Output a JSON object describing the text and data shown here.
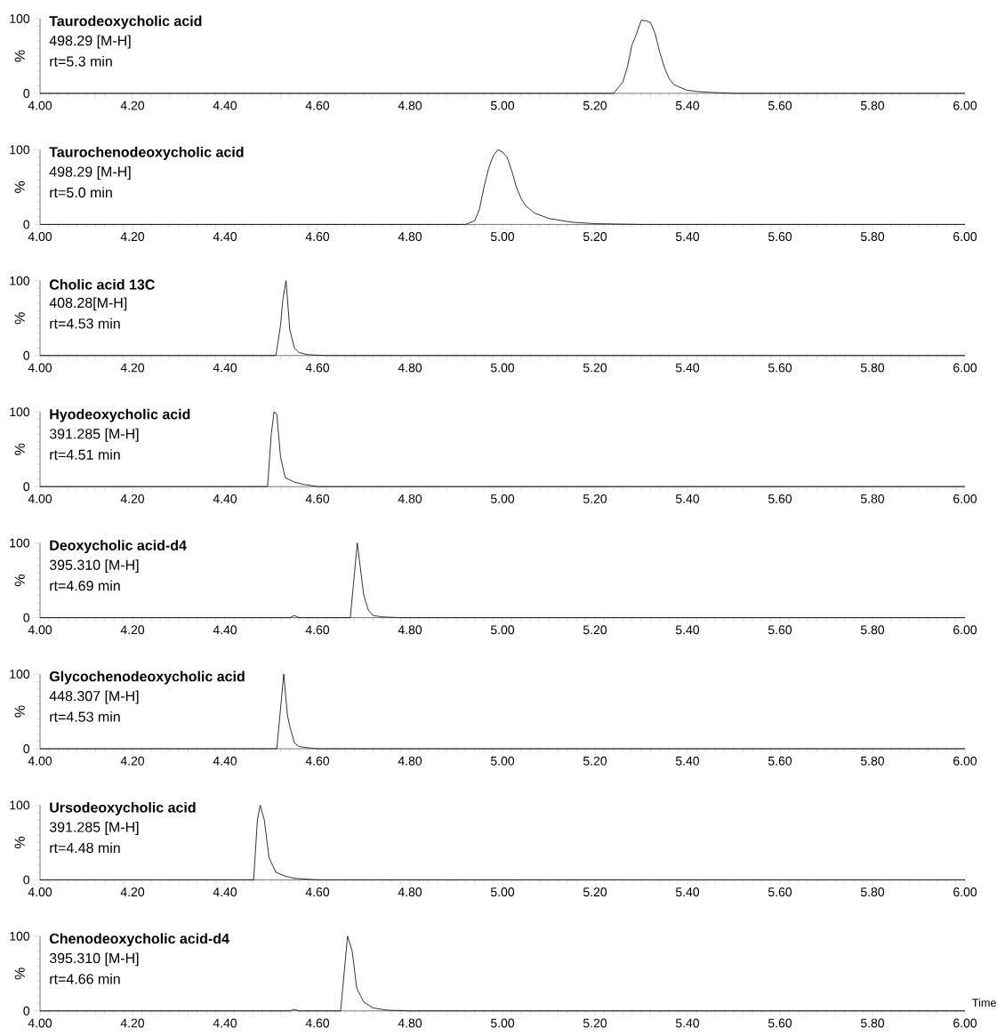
{
  "chart_data": [
    {
      "type": "line",
      "title": "Taurodeoxycholic acid",
      "annotations": [
        "498.29 [M-H]",
        "rt=5.3 min"
      ],
      "ylabel": "%",
      "xlim": [
        4.0,
        6.0
      ],
      "ylim": [
        0,
        100
      ],
      "yticks": [
        0,
        100
      ],
      "xticks": [
        {
          "value": 4.0,
          "label": "4.00"
        },
        {
          "value": 4.2,
          "label": "4.20"
        },
        {
          "value": 4.4,
          "label": "4.40"
        },
        {
          "value": 4.6,
          "label": "4.60"
        },
        {
          "value": 4.8,
          "label": "4.80"
        },
        {
          "value": 5.0,
          "label": "5.00"
        },
        {
          "value": 5.2,
          "label": "5.20"
        },
        {
          "value": 5.4,
          "label": "5.40"
        },
        {
          "value": 5.6,
          "label": "5.60"
        },
        {
          "value": 5.8,
          "label": "5.80"
        },
        {
          "value": 6.0,
          "label": "6.00"
        }
      ],
      "series": [
        {
          "color": "#000000",
          "x": [
            4.0,
            5.24,
            5.26,
            5.27,
            5.28,
            5.29,
            5.3,
            5.31,
            5.32,
            5.33,
            5.34,
            5.35,
            5.36,
            5.37,
            5.38,
            5.4,
            5.43,
            5.46,
            5.5,
            6.0
          ],
          "values": [
            0,
            0,
            15,
            35,
            65,
            80,
            98,
            97,
            95,
            80,
            55,
            35,
            20,
            12,
            9,
            4,
            2,
            1,
            0,
            0
          ]
        }
      ]
    },
    {
      "type": "line",
      "title": "Taurochenodeoxycholic acid",
      "annotations": [
        "498.29 [M-H]",
        "rt=5.0 min"
      ],
      "ylabel": "%",
      "xlim": [
        4.0,
        6.0
      ],
      "ylim": [
        0,
        100
      ],
      "yticks": [
        0,
        100
      ],
      "xticks": [
        {
          "value": 4.0,
          "label": "4.00"
        },
        {
          "value": 4.2,
          "label": "4.20"
        },
        {
          "value": 4.4,
          "label": "4.40"
        },
        {
          "value": 4.6,
          "label": "4.60"
        },
        {
          "value": 4.8,
          "label": "4.80"
        },
        {
          "value": 5.0,
          "label": "5.00"
        },
        {
          "value": 5.2,
          "label": "5.20"
        },
        {
          "value": 5.4,
          "label": "5.40"
        },
        {
          "value": 5.6,
          "label": "5.60"
        },
        {
          "value": 5.8,
          "label": "5.80"
        },
        {
          "value": 6.0,
          "label": "6.00"
        }
      ],
      "series": [
        {
          "color": "#000000",
          "x": [
            4.0,
            4.92,
            4.94,
            4.95,
            4.96,
            4.97,
            4.98,
            4.99,
            5.0,
            5.01,
            5.02,
            5.03,
            5.04,
            5.05,
            5.07,
            5.1,
            5.15,
            5.2,
            5.3,
            6.0
          ],
          "values": [
            0,
            0,
            5,
            20,
            50,
            75,
            92,
            100,
            97,
            90,
            72,
            50,
            35,
            25,
            15,
            8,
            3,
            1,
            0,
            0
          ]
        }
      ]
    },
    {
      "type": "line",
      "title": "Cholic acid 13C",
      "annotations": [
        "408.28[M-H]",
        "rt=4.53 min"
      ],
      "ylabel": "%",
      "xlim": [
        4.0,
        6.0
      ],
      "ylim": [
        0,
        100
      ],
      "yticks": [
        0,
        100
      ],
      "xticks": [
        {
          "value": 4.0,
          "label": "4.00"
        },
        {
          "value": 4.2,
          "label": "4.20"
        },
        {
          "value": 4.4,
          "label": "4.40"
        },
        {
          "value": 4.6,
          "label": "4.60"
        },
        {
          "value": 4.8,
          "label": "4.80"
        },
        {
          "value": 5.0,
          "label": "5.00"
        },
        {
          "value": 5.2,
          "label": "5.20"
        },
        {
          "value": 5.4,
          "label": "5.40"
        },
        {
          "value": 5.6,
          "label": "5.60"
        },
        {
          "value": 5.8,
          "label": "5.80"
        },
        {
          "value": 6.0,
          "label": "6.00"
        }
      ],
      "series": [
        {
          "color": "#000000",
          "x": [
            4.0,
            4.51,
            4.52,
            4.525,
            4.532,
            4.54,
            4.55,
            4.56,
            4.58,
            4.62,
            6.0
          ],
          "values": [
            0,
            0,
            40,
            75,
            100,
            35,
            10,
            4,
            1,
            0,
            0
          ]
        }
      ]
    },
    {
      "type": "line",
      "title": "Hyodeoxycholic acid",
      "annotations": [
        "391.285 [M-H]",
        "rt=4.51 min"
      ],
      "ylabel": "%",
      "xlim": [
        4.0,
        6.0
      ],
      "ylim": [
        0,
        100
      ],
      "yticks": [
        0,
        100
      ],
      "xticks": [
        {
          "value": 4.0,
          "label": "4.00"
        },
        {
          "value": 4.2,
          "label": "4.20"
        },
        {
          "value": 4.4,
          "label": "4.40"
        },
        {
          "value": 4.6,
          "label": "4.60"
        },
        {
          "value": 4.8,
          "label": "4.80"
        },
        {
          "value": 5.0,
          "label": "5.00"
        },
        {
          "value": 5.2,
          "label": "5.20"
        },
        {
          "value": 5.4,
          "label": "5.40"
        },
        {
          "value": 5.6,
          "label": "5.60"
        },
        {
          "value": 5.8,
          "label": "5.80"
        },
        {
          "value": 6.0,
          "label": "6.00"
        }
      ],
      "series": [
        {
          "color": "#000000",
          "x": [
            4.0,
            4.492,
            4.5,
            4.506,
            4.512,
            4.52,
            4.53,
            4.55,
            4.57,
            4.6,
            6.0
          ],
          "values": [
            0,
            0,
            70,
            100,
            97,
            40,
            12,
            6,
            3,
            0,
            0
          ]
        }
      ]
    },
    {
      "type": "line",
      "title": "Deoxycholic acid-d4",
      "annotations": [
        "395.310 [M-H]",
        "rt=4.69 min"
      ],
      "ylabel": "%",
      "xlim": [
        4.0,
        6.0
      ],
      "ylim": [
        0,
        100
      ],
      "yticks": [
        0,
        100
      ],
      "xticks": [
        {
          "value": 4.0,
          "label": "4.00"
        },
        {
          "value": 4.2,
          "label": "4.20"
        },
        {
          "value": 4.4,
          "label": "4.40"
        },
        {
          "value": 4.6,
          "label": "4.60"
        },
        {
          "value": 4.8,
          "label": "4.80"
        },
        {
          "value": 5.0,
          "label": "5.00"
        },
        {
          "value": 5.2,
          "label": "5.20"
        },
        {
          "value": 5.4,
          "label": "5.40"
        },
        {
          "value": 5.6,
          "label": "5.60"
        },
        {
          "value": 5.8,
          "label": "5.80"
        },
        {
          "value": 6.0,
          "label": "6.00"
        }
      ],
      "series": [
        {
          "color": "#000000",
          "x": [
            4.0,
            4.54,
            4.55,
            4.56,
            4.671,
            4.686,
            4.7,
            4.71,
            4.72,
            4.74,
            4.78,
            6.0
          ],
          "values": [
            0,
            0,
            3,
            0,
            0,
            100,
            30,
            10,
            3,
            1,
            0,
            0
          ]
        }
      ]
    },
    {
      "type": "line",
      "title": "Glycochenodeoxycholic acid",
      "annotations": [
        "448.307 [M-H]",
        "rt=4.53 min"
      ],
      "ylabel": "%",
      "xlim": [
        4.0,
        6.0
      ],
      "ylim": [
        0,
        100
      ],
      "yticks": [
        0,
        100
      ],
      "xticks": [
        {
          "value": 4.0,
          "label": "4.00"
        },
        {
          "value": 4.2,
          "label": "4.20"
        },
        {
          "value": 4.4,
          "label": "4.40"
        },
        {
          "value": 4.6,
          "label": "4.60"
        },
        {
          "value": 4.8,
          "label": "4.80"
        },
        {
          "value": 5.0,
          "label": "5.00"
        },
        {
          "value": 5.2,
          "label": "5.20"
        },
        {
          "value": 5.4,
          "label": "5.40"
        },
        {
          "value": 5.6,
          "label": "5.60"
        },
        {
          "value": 5.8,
          "label": "5.80"
        },
        {
          "value": 6.0,
          "label": "6.00"
        }
      ],
      "series": [
        {
          "color": "#000000",
          "x": [
            4.0,
            4.512,
            4.527,
            4.535,
            4.54,
            4.55,
            4.56,
            4.57,
            4.6,
            6.0
          ],
          "values": [
            0,
            0,
            100,
            45,
            30,
            8,
            3,
            2,
            0,
            0
          ]
        }
      ]
    },
    {
      "type": "line",
      "title": "Ursodeoxycholic acid",
      "annotations": [
        "391.285 [M-H]",
        "rt=4.48 min"
      ],
      "ylabel": "%",
      "xlim": [
        4.0,
        6.0
      ],
      "ylim": [
        0,
        100
      ],
      "yticks": [
        0,
        100
      ],
      "xticks": [
        {
          "value": 4.0,
          "label": "4.00"
        },
        {
          "value": 4.2,
          "label": "4.20"
        },
        {
          "value": 4.4,
          "label": "4.40"
        },
        {
          "value": 4.6,
          "label": "4.60"
        },
        {
          "value": 4.8,
          "label": "4.80"
        },
        {
          "value": 5.0,
          "label": "5.00"
        },
        {
          "value": 5.2,
          "label": "5.20"
        },
        {
          "value": 5.4,
          "label": "5.40"
        },
        {
          "value": 5.6,
          "label": "5.60"
        },
        {
          "value": 5.8,
          "label": "5.80"
        },
        {
          "value": 6.0,
          "label": "6.00"
        }
      ],
      "series": [
        {
          "color": "#000000",
          "x": [
            4.0,
            4.462,
            4.47,
            4.476,
            4.485,
            4.495,
            4.51,
            4.53,
            4.55,
            4.6,
            6.0
          ],
          "values": [
            0,
            0,
            80,
            100,
            80,
            30,
            10,
            5,
            2,
            0,
            0
          ]
        }
      ]
    },
    {
      "type": "line",
      "title": "Chenodeoxycholic acid-d4",
      "annotations": [
        "395.310 [M-H]",
        "rt=4.66 min"
      ],
      "ylabel": "%",
      "xlabel": "Time",
      "xlim": [
        4.0,
        6.0
      ],
      "ylim": [
        0,
        100
      ],
      "yticks": [
        0,
        100
      ],
      "xticks": [
        {
          "value": 4.0,
          "label": "4.00"
        },
        {
          "value": 4.2,
          "label": "4.20"
        },
        {
          "value": 4.4,
          "label": "4.40"
        },
        {
          "value": 4.6,
          "label": "4.60"
        },
        {
          "value": 4.8,
          "label": "4.80"
        },
        {
          "value": 5.0,
          "label": "5.00"
        },
        {
          "value": 5.2,
          "label": "5.20"
        },
        {
          "value": 5.4,
          "label": "5.40"
        },
        {
          "value": 5.6,
          "label": "5.60"
        },
        {
          "value": 5.8,
          "label": "5.80"
        },
        {
          "value": 6.0,
          "label": "6.00"
        }
      ],
      "series": [
        {
          "color": "#000000",
          "x": [
            4.0,
            4.54,
            4.55,
            4.56,
            4.65,
            4.665,
            4.675,
            4.685,
            4.7,
            4.72,
            4.75,
            4.8,
            6.0
          ],
          "values": [
            0,
            0,
            2,
            0,
            0,
            100,
            80,
            30,
            12,
            4,
            1,
            0,
            0
          ]
        }
      ]
    }
  ]
}
